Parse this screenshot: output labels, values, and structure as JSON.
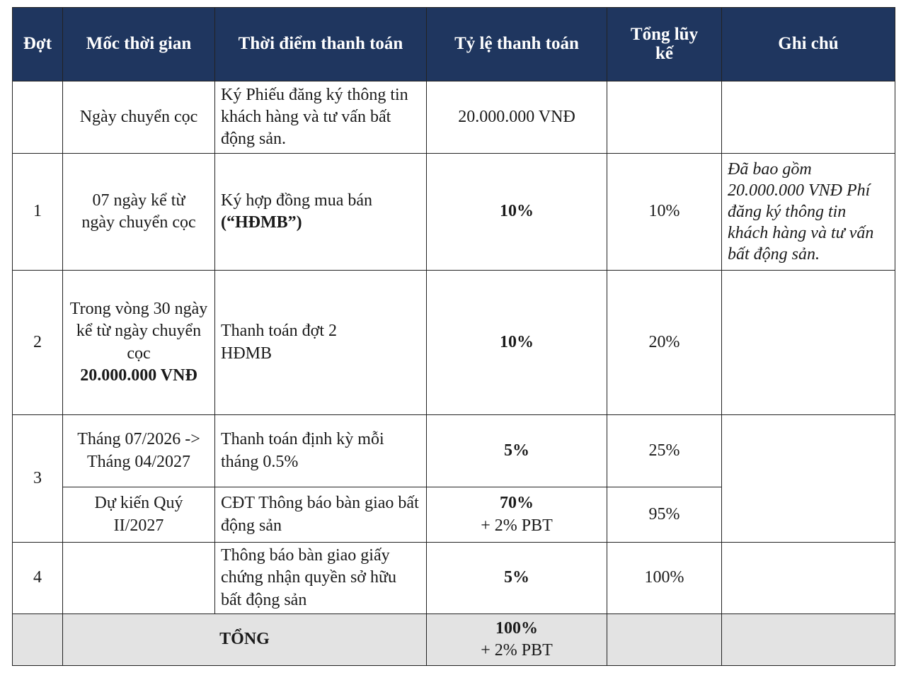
{
  "headers": {
    "dot": "Đợt",
    "moc": "Mốc thời gian",
    "thoi_diem": "Thời điểm thanh toán",
    "ty_le": "Tỷ lệ thanh toán",
    "tong_luy_ke": "Tổng lũy kế",
    "ghi_chu": "Ghi chú"
  },
  "rows": {
    "r0": {
      "moc": "Ngày chuyển cọc",
      "thoi_diem": "Ký Phiếu đăng ký thông tin khách hàng và tư vấn bất động sản.",
      "ty_le": "20.000.000 VNĐ"
    },
    "r1": {
      "dot": "1",
      "moc": "07 ngày kể từ ngày chuyển cọc",
      "thoi_diem": "Ký hợp đồng mua bán",
      "thoi_diem_bold": "(“HĐMB”)",
      "ty_le": "10%",
      "luy_ke": "10%",
      "ghi_chu": "Đã bao gồm 20.000.000 VNĐ Phí đăng ký thông tin khách hàng và tư vấn bất động sản."
    },
    "r2": {
      "dot": "2",
      "moc": "Trong vòng 30 ngày kể từ ngày chuyển cọc",
      "moc_bold": "20.000.000 VNĐ",
      "thoi_diem": "Thanh toán đợt 2 HĐMB",
      "ty_le": "10%",
      "luy_ke": "20%"
    },
    "r3a": {
      "dot": "3",
      "moc": "Tháng 07/2026 -> Tháng 04/2027",
      "thoi_diem": "Thanh toán định kỳ mỗi tháng 0.5%",
      "ty_le": "5%",
      "luy_ke": "25%"
    },
    "r3b": {
      "moc": "Dự kiến Quý II/2027",
      "thoi_diem": "CĐT Thông báo bàn giao bất động sản",
      "ty_le_bold": "70%",
      "ty_le_extra": "+ 2% PBT",
      "luy_ke": "95%"
    },
    "r4": {
      "dot": "4",
      "thoi_diem": "Thông báo bàn giao giấy chứng nhận quyền sở hữu bất động sản",
      "ty_le": "5%",
      "luy_ke": "100%"
    },
    "total": {
      "label": "TỔNG",
      "ty_le_bold": "100%",
      "ty_le_extra": "+ 2% PBT"
    }
  }
}
